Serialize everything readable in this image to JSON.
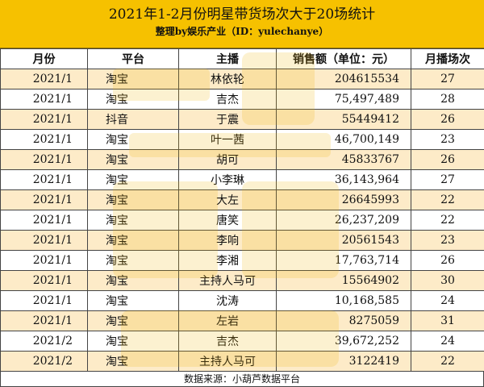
{
  "header": {
    "title": "2021年1-2月份明星带货场次大于20场统计",
    "subtitle": "整理by娱乐产业（ID：yulechanye）"
  },
  "columns": [
    "月份",
    "平台",
    "主播",
    "销售额（单位：元）",
    "月播场次"
  ],
  "rows": [
    {
      "month": "2021/1",
      "platform": "淘宝",
      "host": "林依轮",
      "sales": "204615534",
      "count": "27"
    },
    {
      "month": "2021/1",
      "platform": "淘宝",
      "host": "吉杰",
      "sales": "75,497,489",
      "count": "28"
    },
    {
      "month": "2021/1",
      "platform": "抖音",
      "host": "于震",
      "sales": "55449412",
      "count": "26"
    },
    {
      "month": "2021/1",
      "platform": "淘宝",
      "host": "叶一茜",
      "sales": "46,700,149",
      "count": "23"
    },
    {
      "month": "2021/1",
      "platform": "淘宝",
      "host": "胡可",
      "sales": "45833767",
      "count": "26"
    },
    {
      "month": "2021/1",
      "platform": "淘宝",
      "host": "小李琳",
      "sales": "36,143,964",
      "count": "27"
    },
    {
      "month": "2021/1",
      "platform": "淘宝",
      "host": "大左",
      "sales": "26645993",
      "count": "22"
    },
    {
      "month": "2021/1",
      "platform": "淘宝",
      "host": "唐笑",
      "sales": "26,237,209",
      "count": "22"
    },
    {
      "month": "2021/1",
      "platform": "淘宝",
      "host": "李响",
      "sales": "20561543",
      "count": "23"
    },
    {
      "month": "2021/1",
      "platform": "淘宝",
      "host": "李湘",
      "sales": "17,763,714",
      "count": "26"
    },
    {
      "month": "2021/1",
      "platform": "淘宝",
      "host": "主持人马可",
      "sales": "15564902",
      "count": "30"
    },
    {
      "month": "2021/1",
      "platform": "淘宝",
      "host": "沈涛",
      "sales": "10,168,585",
      "count": "24"
    },
    {
      "month": "2021/1",
      "platform": "淘宝",
      "host": "左岩",
      "sales": "8275059",
      "count": "31"
    },
    {
      "month": "2021/2",
      "platform": "淘宝",
      "host": "吉杰",
      "sales": "39,672,252",
      "count": "24"
    },
    {
      "month": "2021/2",
      "platform": "淘宝",
      "host": "主持人马可",
      "sales": "3122419",
      "count": "22"
    }
  ],
  "footer": {
    "source": "数据来源：小葫芦数据平台"
  },
  "colors": {
    "title_bg": "#f6c100",
    "row_alt_bg": "#fdebc8"
  }
}
